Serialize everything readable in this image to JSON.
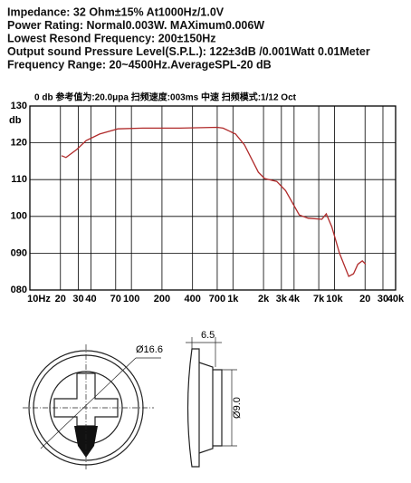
{
  "specs": [
    "Impedance: 32 Ohm±15%  At1000Hz/1.0V",
    "Power Rating: Normal0.003W. MAXimum0.006W",
    "Lowest Resond Frequency: 200±150Hz",
    "Output sound Pressure Level(S.P.L.): 122±3dB /0.001Watt 0.01Meter",
    "Frequency Range: 20~4500Hz.AverageSPL-20 dB"
  ],
  "chart_data": {
    "type": "line",
    "header": "0 db   参考值为:20.0μpa   扫频速度:003ms   中速    扫频模式:1/12   Oct",
    "y_label": "db",
    "x": [
      20.5,
      22.7,
      29,
      35.8,
      48.7,
      73.5,
      130,
      300,
      700,
      800,
      1060,
      1300,
      1780,
      2050,
      2700,
      3300,
      4500,
      5500,
      7500,
      8300,
      9400,
      11200,
      13800,
      15400,
      17000,
      18800,
      20300
    ],
    "series": [
      {
        "name": "SPL",
        "color": "#b02a2a",
        "values": [
          116.5,
          116,
          118.2,
          120.6,
          122.4,
          123.8,
          124,
          124,
          124.2,
          124,
          122.4,
          119.4,
          112,
          110.3,
          109.5,
          107,
          100.4,
          99.5,
          99.2,
          100.7,
          97.2,
          90,
          83.7,
          84.4,
          87,
          87.9,
          87
        ]
      }
    ],
    "xlim": [
      10,
      40000
    ],
    "xscale": "log",
    "xticks": [
      {
        "value": 10,
        "label": "10Hz"
      },
      20,
      30,
      40,
      70,
      100,
      200,
      400,
      700,
      {
        "value": 1000,
        "label": "1k"
      },
      {
        "value": 2000,
        "label": "2k"
      },
      {
        "value": 3000,
        "label": "3k"
      },
      {
        "value": 4000,
        "label": "4k"
      },
      {
        "value": 7000,
        "label": "7k"
      },
      {
        "value": 10000,
        "label": "10k"
      },
      {
        "value": 20000,
        "label": "20"
      },
      {
        "value": 30000,
        "label": "30"
      },
      {
        "value": 40000,
        "label": "40k"
      }
    ],
    "ylim": [
      80,
      130
    ],
    "yticks": [
      {
        "value": 80,
        "label": "080"
      },
      {
        "value": 90,
        "label": "090"
      },
      100,
      110,
      120,
      130
    ],
    "grid": true
  },
  "drawing": {
    "outer_diameter": "Ø16.6",
    "depth": "6.5",
    "inner_diameter": "Ø9.0"
  }
}
